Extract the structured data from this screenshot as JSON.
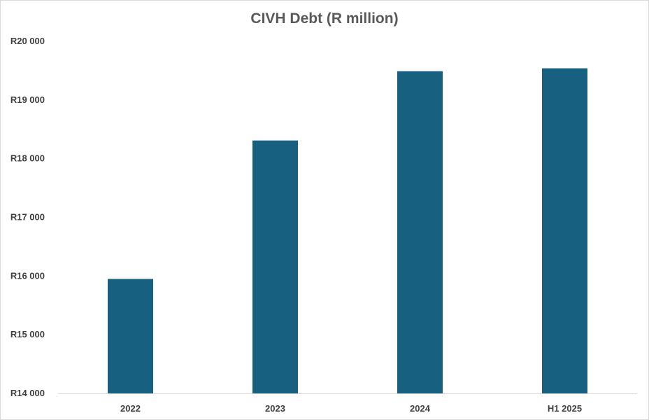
{
  "chart_data": {
    "type": "bar",
    "title": "CIVH Debt (R million)",
    "categories": [
      "2022",
      "2023",
      "2024",
      "H1 2025"
    ],
    "values": [
      15950,
      18310,
      19490,
      19540
    ],
    "ylim": [
      14000,
      20000
    ],
    "yticks": [
      14000,
      15000,
      16000,
      17000,
      18000,
      19000,
      20000
    ],
    "ytick_labels": [
      "R14 000",
      "R15 000",
      "R16 000",
      "R17 000",
      "R18 000",
      "R19 000",
      "R20 000"
    ],
    "xlabel": "",
    "ylabel": "",
    "grid": false,
    "legend": "none",
    "bar_color": "#17607f",
    "axis_color": "#d9d9d9"
  }
}
